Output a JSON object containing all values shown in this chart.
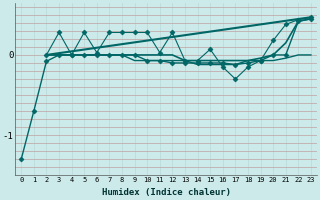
{
  "xlabel": "Humidex (Indice chaleur)",
  "background_color": "#cceaea",
  "grid_color_v": "#b8d8d8",
  "grid_color_h": "#c0a0a0",
  "line_color": "#006666",
  "x_ticks": [
    0,
    1,
    2,
    3,
    4,
    5,
    6,
    7,
    8,
    9,
    10,
    11,
    12,
    13,
    14,
    15,
    16,
    17,
    18,
    19,
    20,
    21,
    22,
    23
  ],
  "ylim": [
    -1.5,
    0.65
  ],
  "yticks": [
    -1,
    0
  ],
  "figsize": [
    3.2,
    2.0
  ],
  "dpi": 100,
  "lines": [
    {
      "x": [
        0,
        1,
        2,
        3,
        4,
        5,
        6,
        7,
        8,
        9,
        10,
        11,
        12,
        13,
        14,
        15,
        16,
        17,
        18,
        19,
        20,
        21,
        22,
        23
      ],
      "y": [
        -1.3,
        -0.7,
        -0.08,
        0.0,
        0.0,
        0.0,
        0.0,
        0.0,
        0.0,
        0.0,
        -0.07,
        -0.07,
        -0.1,
        -0.1,
        -0.1,
        -0.1,
        -0.1,
        -0.12,
        -0.1,
        -0.07,
        0.0,
        0.0,
        0.42,
        0.45
      ],
      "marker": "D",
      "markersize": 2.5,
      "linewidth": 1.0,
      "linestyle": "-"
    },
    {
      "x": [
        2,
        3,
        4,
        5,
        6,
        7,
        8,
        9,
        10,
        11,
        12,
        13,
        14,
        15,
        16,
        17,
        18,
        19,
        20,
        21,
        22,
        23
      ],
      "y": [
        0.0,
        0.28,
        0.0,
        0.28,
        0.03,
        0.28,
        0.28,
        0.28,
        0.28,
        0.03,
        0.28,
        -0.07,
        -0.07,
        0.07,
        -0.15,
        -0.3,
        -0.15,
        -0.07,
        0.18,
        0.38,
        0.44,
        0.47
      ],
      "marker": "D",
      "markersize": 2.5,
      "linewidth": 0.8,
      "linestyle": "-"
    },
    {
      "x": [
        2,
        3,
        4,
        5,
        6,
        7,
        8,
        9,
        10,
        11,
        12,
        13,
        14,
        15,
        16,
        17,
        18,
        19,
        20,
        21,
        22,
        23
      ],
      "y": [
        0.0,
        0.0,
        0.0,
        0.0,
        0.0,
        0.0,
        0.0,
        0.0,
        0.0,
        0.0,
        0.0,
        -0.07,
        -0.07,
        -0.07,
        -0.07,
        -0.07,
        -0.07,
        -0.04,
        0.0,
        0.15,
        0.42,
        0.45
      ],
      "marker": null,
      "markersize": 0,
      "linewidth": 1.2,
      "linestyle": "-"
    },
    {
      "x": [
        2,
        3,
        4,
        5,
        6,
        7,
        8,
        9,
        10,
        11,
        12,
        13,
        14,
        15,
        16,
        17,
        18,
        19,
        20,
        21,
        22,
        23
      ],
      "y": [
        0.0,
        0.0,
        0.0,
        0.0,
        0.0,
        0.0,
        0.0,
        -0.07,
        -0.07,
        -0.07,
        -0.07,
        -0.07,
        -0.12,
        -0.12,
        -0.12,
        -0.12,
        -0.07,
        -0.07,
        -0.07,
        -0.04,
        0.0,
        0.0
      ],
      "marker": null,
      "markersize": 0,
      "linewidth": 1.0,
      "linestyle": "-"
    },
    {
      "x": [
        2,
        23
      ],
      "y": [
        0.0,
        0.47
      ],
      "marker": null,
      "markersize": 0,
      "linewidth": 1.5,
      "linestyle": "-"
    }
  ]
}
